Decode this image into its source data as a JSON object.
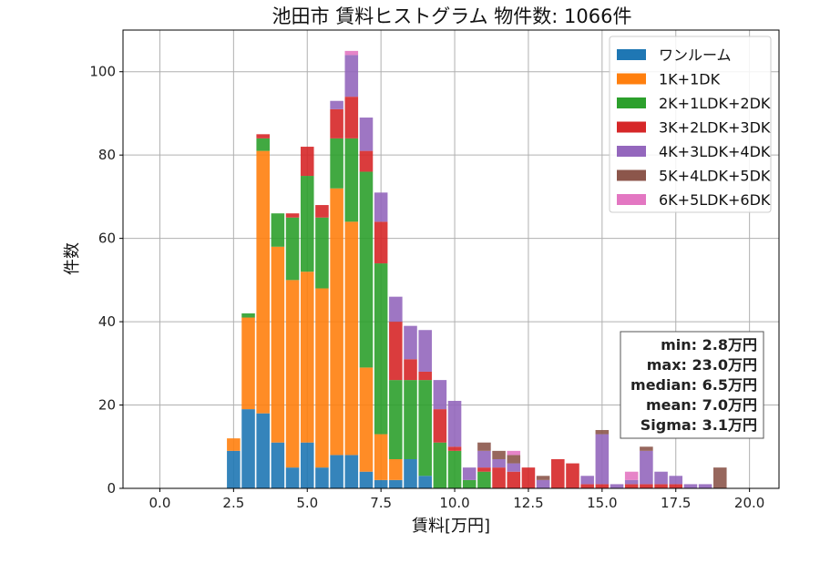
{
  "chart_data": {
    "type": "bar",
    "stacked": true,
    "title": "池田市 賃料ヒストグラム 物件数: 1066件",
    "xlabel": "賃料[万円]",
    "ylabel": "件数",
    "xlim": [
      -1.25,
      21.0
    ],
    "ylim": [
      0,
      110
    ],
    "xticks": [
      0.0,
      2.5,
      5.0,
      7.5,
      10.0,
      12.5,
      15.0,
      17.5,
      20.0
    ],
    "xtick_labels": [
      "0.0",
      "2.5",
      "5.0",
      "7.5",
      "10.0",
      "12.5",
      "15.0",
      "17.5",
      "20.0"
    ],
    "yticks": [
      0,
      20,
      40,
      60,
      80,
      100
    ],
    "ytick_labels": [
      "0",
      "20",
      "40",
      "60",
      "80",
      "100"
    ],
    "grid": true,
    "legend_position": "top-right",
    "bin_width": 0.5,
    "bins": [
      2.5,
      3.0,
      3.5,
      4.0,
      4.5,
      5.0,
      5.5,
      6.0,
      6.5,
      7.0,
      7.5,
      8.0,
      8.5,
      9.0,
      9.5,
      10.0,
      10.5,
      11.0,
      11.5,
      12.0,
      12.5,
      13.0,
      13.5,
      14.0,
      14.5,
      15.0,
      15.5,
      16.0,
      16.5,
      17.0,
      17.5,
      18.0,
      18.5,
      19.0
    ],
    "series": [
      {
        "name": "ワンルーム",
        "color": "#1f77b4",
        "values": [
          9,
          19,
          18,
          11,
          5,
          11,
          5,
          8,
          8,
          4,
          2,
          2,
          7,
          3,
          0,
          0,
          0,
          0,
          0,
          0,
          0,
          0,
          0,
          0,
          0,
          0,
          0,
          0,
          0,
          0,
          0,
          0,
          0,
          0
        ]
      },
      {
        "name": "1K+1DK",
        "color": "#ff7f0e",
        "values": [
          3,
          22,
          63,
          47,
          45,
          41,
          43,
          64,
          56,
          25,
          11,
          5,
          0,
          0,
          0,
          0,
          0,
          0,
          0,
          0,
          0,
          0,
          0,
          0,
          0,
          0,
          0,
          0,
          0,
          0,
          0,
          0,
          0,
          0
        ]
      },
      {
        "name": "2K+1LDK+2DK",
        "color": "#2ca02c",
        "values": [
          0,
          1,
          3,
          8,
          15,
          23,
          17,
          12,
          20,
          47,
          41,
          19,
          19,
          23,
          11,
          9,
          2,
          4,
          0,
          0,
          0,
          0,
          0,
          0,
          0,
          0,
          0,
          0,
          0,
          0,
          0,
          0,
          0,
          0
        ]
      },
      {
        "name": "3K+2LDK+3DK",
        "color": "#d62728",
        "values": [
          0,
          0,
          1,
          0,
          1,
          7,
          3,
          7,
          10,
          5,
          10,
          14,
          5,
          2,
          8,
          1,
          0,
          1,
          5,
          4,
          5,
          0,
          7,
          6,
          1,
          1,
          0,
          1,
          1,
          1,
          1,
          0,
          0,
          0
        ]
      },
      {
        "name": "4K+3LDK+4DK",
        "color": "#9467bd",
        "values": [
          0,
          0,
          0,
          0,
          0,
          0,
          0,
          2,
          10,
          8,
          7,
          6,
          8,
          10,
          7,
          11,
          3,
          4,
          2,
          2,
          0,
          2,
          0,
          0,
          2,
          12,
          1,
          1,
          8,
          3,
          2,
          1,
          1,
          0
        ]
      },
      {
        "name": "5K+4LDK+5DK",
        "color": "#8c564b",
        "values": [
          0,
          0,
          0,
          0,
          0,
          0,
          0,
          0,
          0,
          0,
          0,
          0,
          0,
          0,
          0,
          0,
          0,
          2,
          2,
          2,
          0,
          1,
          0,
          0,
          0,
          1,
          0,
          0,
          1,
          0,
          0,
          0,
          0,
          5
        ]
      },
      {
        "name": "6K+5LDK+6DK",
        "color": "#e377c2",
        "values": [
          0,
          0,
          0,
          0,
          0,
          0,
          0,
          0,
          1,
          0,
          0,
          0,
          0,
          0,
          0,
          0,
          0,
          0,
          0,
          1,
          0,
          0,
          0,
          0,
          0,
          0,
          0,
          2,
          0,
          0,
          0,
          0,
          0,
          0
        ]
      }
    ],
    "stats": [
      "min: 2.8万円",
      "max: 23.0万円",
      "median: 6.5万円",
      "mean: 7.0万円",
      "Sigma: 3.1万円"
    ]
  }
}
